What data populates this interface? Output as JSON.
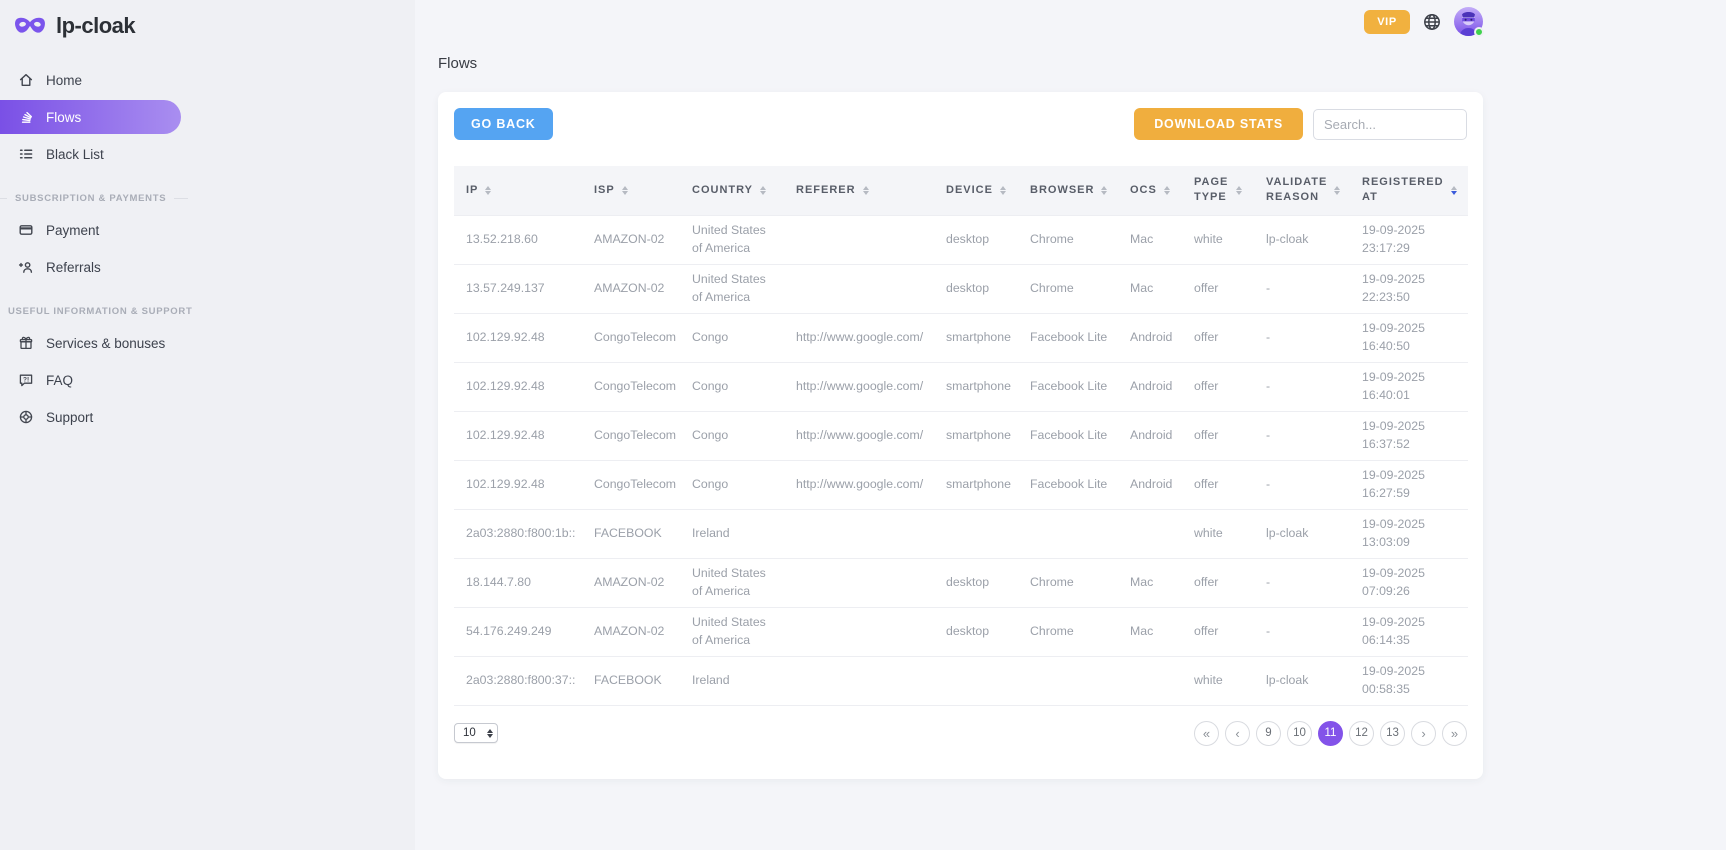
{
  "brand": {
    "name": "lp-cloak",
    "logo_icon": "mask-icon",
    "accent_purple": "#7a50e6"
  },
  "topbar": {
    "vip_label": "VIP",
    "globe_icon": "globe-icon",
    "avatar_icon": "user-avatar",
    "online_status_color": "#3fd24d"
  },
  "sidebar": {
    "sections": [
      {
        "header": "",
        "items": [
          {
            "label": "Home",
            "icon": "home-icon",
            "active": false
          },
          {
            "label": "Flows",
            "icon": "flows-stack-icon",
            "active": true
          },
          {
            "label": "Black List",
            "icon": "list-icon",
            "active": false
          }
        ]
      },
      {
        "header": "SUBSCRIPTION & PAYMENTS",
        "items": [
          {
            "label": "Payment",
            "icon": "credit-card-icon",
            "active": false
          },
          {
            "label": "Referrals",
            "icon": "person-add-icon",
            "active": false
          }
        ]
      },
      {
        "header": "USEFUL INFORMATION & SUPPORT",
        "items": [
          {
            "label": "Services & bonuses",
            "icon": "gift-icon",
            "active": false
          },
          {
            "label": "FAQ",
            "icon": "faq-bubble-icon",
            "active": false
          },
          {
            "label": "Support",
            "icon": "lifebuoy-icon",
            "active": false
          }
        ]
      }
    ]
  },
  "page": {
    "title": "Flows"
  },
  "toolbar": {
    "go_back_label": "GO BACK",
    "go_back_color": "#55a4f2",
    "download_stats_label": "DOWNLOAD STATS",
    "download_stats_color": "#f0ae3e",
    "search_placeholder": "Search...",
    "search_value": ""
  },
  "table": {
    "columns": [
      "IP",
      "ISP",
      "COUNTRY",
      "REFERER",
      "DEVICE",
      "BROWSER",
      "OCS",
      "PAGE TYPE",
      "VALIDATE REASON",
      "REGISTERED AT"
    ],
    "sorted_column": "REGISTERED AT",
    "sort_direction": "desc",
    "sort_active_color": "#3b5bdb",
    "rows": [
      [
        "13.52.218.60",
        "AMAZON-02",
        "United States of America",
        "",
        "desktop",
        "Chrome",
        "Mac",
        "white",
        "lp-cloak",
        "19-09-2025 23:17:29"
      ],
      [
        "13.57.249.137",
        "AMAZON-02",
        "United States of America",
        "",
        "desktop",
        "Chrome",
        "Mac",
        "offer",
        "-",
        "19-09-2025 22:23:50"
      ],
      [
        "102.129.92.48",
        "CongoTelecom",
        "Congo",
        "http://www.google.com/",
        "smartphone",
        "Facebook Lite",
        "Android",
        "offer",
        "-",
        "19-09-2025 16:40:50"
      ],
      [
        "102.129.92.48",
        "CongoTelecom",
        "Congo",
        "http://www.google.com/",
        "smartphone",
        "Facebook Lite",
        "Android",
        "offer",
        "-",
        "19-09-2025 16:40:01"
      ],
      [
        "102.129.92.48",
        "CongoTelecom",
        "Congo",
        "http://www.google.com/",
        "smartphone",
        "Facebook Lite",
        "Android",
        "offer",
        "-",
        "19-09-2025 16:37:52"
      ],
      [
        "102.129.92.48",
        "CongoTelecom",
        "Congo",
        "http://www.google.com/",
        "smartphone",
        "Facebook Lite",
        "Android",
        "offer",
        "-",
        "19-09-2025 16:27:59"
      ],
      [
        "2a03:2880:f800:1b::",
        "FACEBOOK",
        "Ireland",
        "",
        "",
        "",
        "",
        "white",
        "lp-cloak",
        "19-09-2025 13:03:09"
      ],
      [
        "18.144.7.80",
        "AMAZON-02",
        "United States of America",
        "",
        "desktop",
        "Chrome",
        "Mac",
        "offer",
        "-",
        "19-09-2025 07:09:26"
      ],
      [
        "54.176.249.249",
        "AMAZON-02",
        "United States of America",
        "",
        "desktop",
        "Chrome",
        "Mac",
        "offer",
        "-",
        "19-09-2025 06:14:35"
      ],
      [
        "2a03:2880:f800:37::",
        "FACEBOOK",
        "Ireland",
        "",
        "",
        "",
        "",
        "white",
        "lp-cloak",
        "19-09-2025 00:58:35"
      ]
    ]
  },
  "pagination": {
    "page_size": "10",
    "first_label": "«",
    "prev_label": "‹",
    "pages": [
      "9",
      "10",
      "11",
      "12",
      "13"
    ],
    "active_page": "11",
    "next_label": "›",
    "last_label": "»",
    "active_color": "#8353e9"
  }
}
